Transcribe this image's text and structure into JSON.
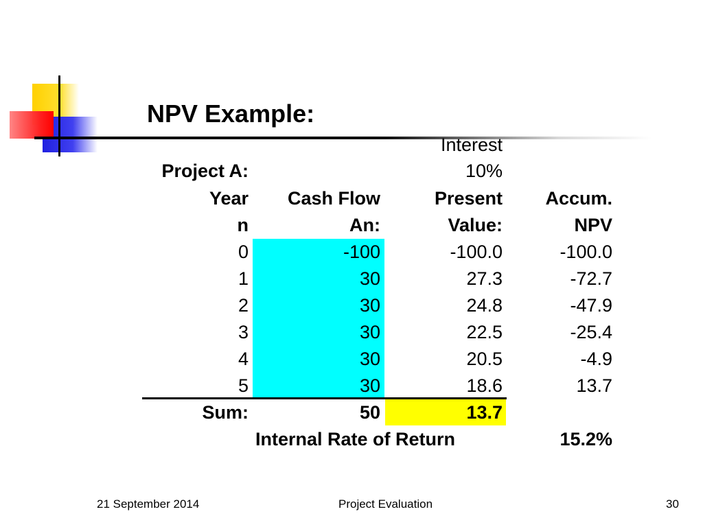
{
  "slide": {
    "title": "NPV Example:",
    "footer": {
      "date": "21 September 2014",
      "center": "Project Evaluation",
      "page": "30"
    }
  },
  "table": {
    "interest_label": "Interest",
    "interest_rate": "10%",
    "project_label": "Project A:",
    "headers": {
      "year_1": "Year",
      "year_2": "n",
      "cash_1": "Cash Flow",
      "cash_2": "An:",
      "pv_1": "Present",
      "pv_2": "Value:",
      "npv_1": "Accum.",
      "npv_2": "NPV"
    },
    "rows": [
      {
        "year": "0",
        "cash": "-100",
        "pv": "-100.0",
        "npv": "-100.0"
      },
      {
        "year": "1",
        "cash": "30",
        "pv": "27.3",
        "npv": "-72.7"
      },
      {
        "year": "2",
        "cash": "30",
        "pv": "24.8",
        "npv": "-47.9"
      },
      {
        "year": "3",
        "cash": "30",
        "pv": "22.5",
        "npv": "-25.4"
      },
      {
        "year": "4",
        "cash": "30",
        "pv": "20.5",
        "npv": "-4.9"
      },
      {
        "year": "5",
        "cash": "30",
        "pv": "18.6",
        "npv": "13.7"
      }
    ],
    "sum": {
      "label": "Sum:",
      "cash": "50",
      "pv": "13.7"
    },
    "irr": {
      "label": "Internal Rate of Return",
      "value": "15.2%"
    }
  },
  "colors": {
    "cash_highlight": "#00ffff",
    "npv_highlight": "#ffff00"
  }
}
